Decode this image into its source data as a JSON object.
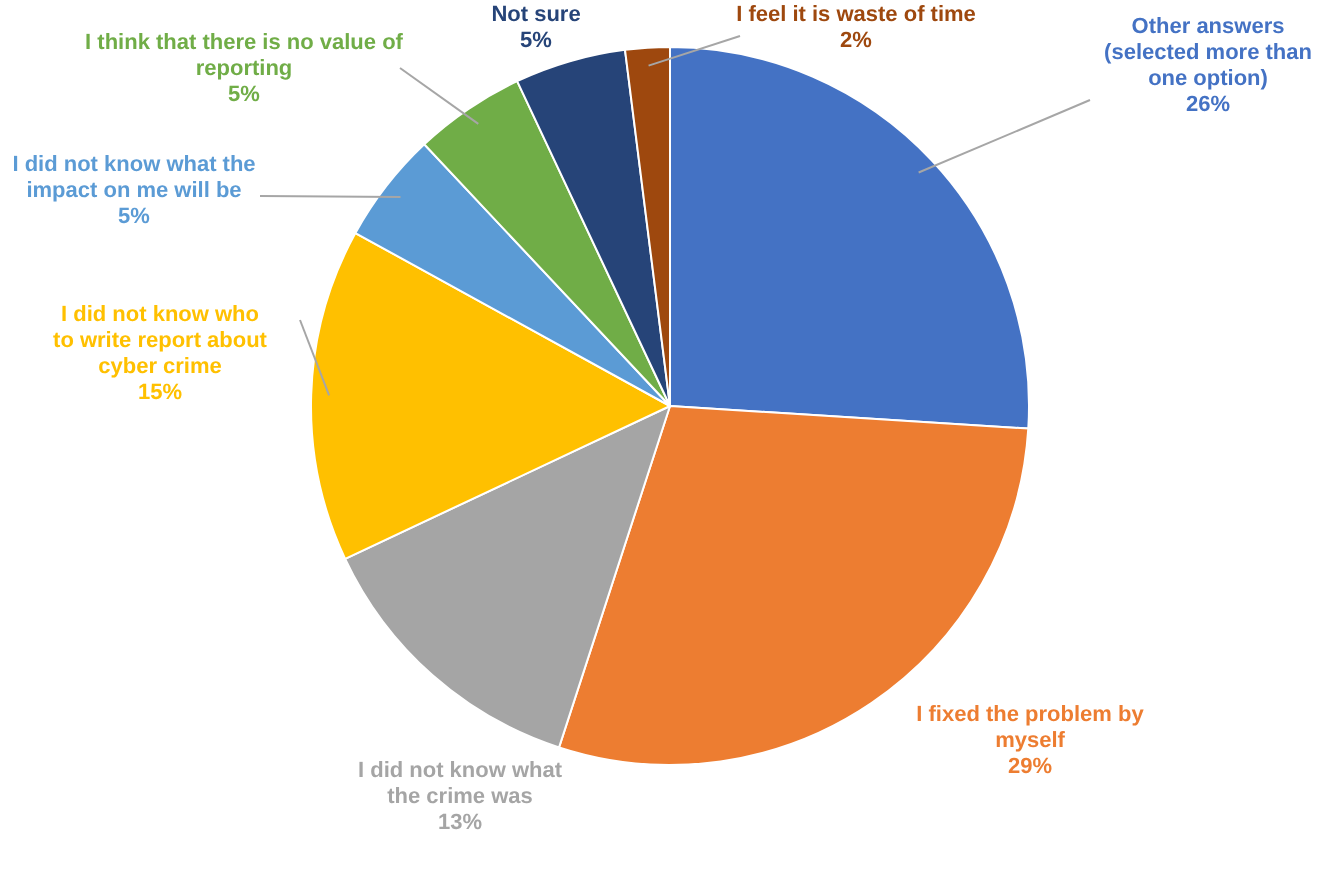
{
  "chart_data": {
    "type": "pie",
    "categories": [
      "Other answers (selected more than one option)",
      "I fixed the problem by myself",
      "I did not know what the crime was",
      "I did not know who to write report about cyber crime",
      "I did not know what the impact on me will be",
      "I think that there is no value of reporting",
      "Not sure",
      "I feel it is waste of time"
    ],
    "values": [
      26,
      29,
      13,
      15,
      5,
      5,
      5,
      2
    ],
    "colors": [
      "#4472c4",
      "#ed7d31",
      "#a5a5a5",
      "#ffc000",
      "#5b9bd5",
      "#70ad47",
      "#264478",
      "#9e480e"
    ],
    "value_labels": [
      "26%",
      "29%",
      "13%",
      "15%",
      "5%",
      "5%",
      "5%",
      "2%"
    ]
  }
}
